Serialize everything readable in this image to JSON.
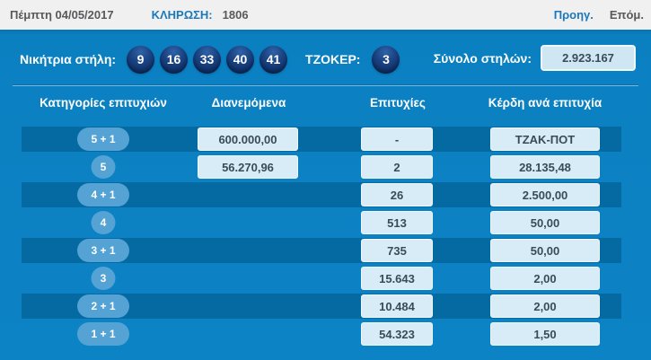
{
  "topbar": {
    "date": "Πέμπτη 04/05/2017",
    "draw_label": "ΚΛΗΡΩΣΗ:",
    "draw_number": "1806",
    "prev_label": "Προηγ.",
    "next_label": "Επόμ."
  },
  "winning_row": {
    "label": "Νικήτρια στήλη:",
    "numbers": [
      "9",
      "16",
      "33",
      "40",
      "41"
    ],
    "joker_label": "ΤΖΟΚΕΡ:",
    "joker_number": "3",
    "total_columns_label": "Σύνολο στηλών:",
    "total_columns_value": "2.923.167"
  },
  "table": {
    "headers": [
      "Κατηγορίες επιτυχιών",
      "Διανεμόμενα",
      "Επιτυχίες",
      "Κέρδη ανά επιτυχία"
    ],
    "rows": [
      {
        "category": "5 + 1",
        "distributed": "600.000,00",
        "winners": "-",
        "prize": "ΤΖΑΚ-ΠΟΤ"
      },
      {
        "category": "5",
        "distributed": "56.270,96",
        "winners": "2",
        "prize": "28.135,48"
      },
      {
        "category": "4 + 1",
        "winners": "26",
        "prize": "2.500,00"
      },
      {
        "category": "4",
        "winners": "513",
        "prize": "50,00"
      },
      {
        "category": "3 + 1",
        "winners": "735",
        "prize": "50,00"
      },
      {
        "category": "3",
        "winners": "15.643",
        "prize": "2,00"
      },
      {
        "category": "2 + 1",
        "winners": "10.484",
        "prize": "2,00"
      },
      {
        "category": "1 + 1",
        "winners": "54.323",
        "prize": "1,50"
      }
    ]
  },
  "colors": {
    "panel_blue": "#0c83c5",
    "stripe_blue": "#0569a2",
    "badge_blue": "#54a3d4",
    "ball_navy": "#123672",
    "value_box_bg": "#d8ecf8",
    "link_blue": "#1d78b8",
    "topbar_bg": "#f0f0f1"
  }
}
